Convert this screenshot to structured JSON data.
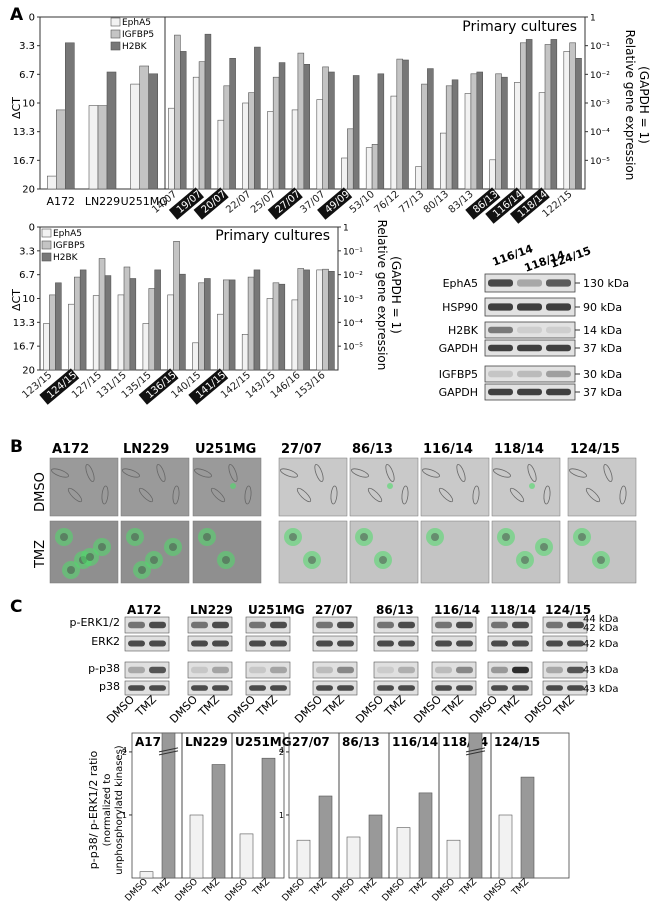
{
  "panels": {
    "A": "A",
    "B": "B",
    "C": "C"
  },
  "series_names": [
    "EphA5",
    "IGFBP5",
    "H2BK"
  ],
  "colors": {
    "epha5": "#f2f2f2",
    "igfbp5": "#c4c4c4",
    "h2bk": "#777777",
    "gfp": "#4fdc6a"
  },
  "axis_text": {
    "dct_label": "ΔCT",
    "right_label_line1": "Relative gene expression",
    "right_label_line2": "(GAPDH = 1)",
    "dct_ticks": [
      "0",
      "3.3",
      "6.7",
      "10",
      "13.3",
      "16.7",
      "20"
    ],
    "rel_ticks": [
      "1",
      "10⁻¹",
      "10⁻²",
      "10⁻³",
      "10⁻⁴",
      "10⁻⁵"
    ],
    "primary_cultures": "Primary cultures"
  },
  "chart_data": [
    {
      "type": "bar",
      "title": "",
      "categories": [
        "A172",
        "LN229",
        "U251MG"
      ],
      "highlighted": [],
      "ylabel": "ΔCT",
      "ylim": [
        20,
        0
      ],
      "series": [
        {
          "name": "EphA5",
          "values": [
            18.5,
            10.3,
            7.8
          ]
        },
        {
          "name": "IGFBP5",
          "values": [
            10.8,
            10.3,
            5.7
          ]
        },
        {
          "name": "H2BK",
          "values": [
            3.0,
            6.4,
            6.6
          ]
        }
      ]
    },
    {
      "type": "bar",
      "title": "Primary cultures",
      "categories": [
        "14/07",
        "19/07",
        "20/07",
        "22/07",
        "25/07",
        "27/07",
        "37/07",
        "49/09",
        "53/10",
        "76/12",
        "77/13",
        "80/13",
        "83/13",
        "86/13",
        "116/14",
        "118/14",
        "122/15"
      ],
      "highlighted": [
        "19/07",
        "20/07",
        "27/07",
        "49/09",
        "86/13",
        "116/14",
        "118/14"
      ],
      "ylabel": "ΔCT",
      "ylim": [
        20,
        0
      ],
      "series": [
        {
          "name": "EphA5",
          "values": [
            10.6,
            7.0,
            12.0,
            10.0,
            11.0,
            10.8,
            9.6,
            16.4,
            15.2,
            9.2,
            17.4,
            13.5,
            8.9,
            16.6,
            7.6,
            8.8,
            4.0
          ]
        },
        {
          "name": "IGFBP5",
          "values": [
            2.1,
            5.2,
            8.0,
            8.8,
            7.0,
            4.2,
            5.8,
            13.0,
            14.8,
            4.9,
            7.8,
            8.0,
            6.6,
            6.6,
            3.0,
            3.2,
            3.0
          ]
        },
        {
          "name": "H2BK",
          "values": [
            4.0,
            2.0,
            4.8,
            3.5,
            5.3,
            5.5,
            6.4,
            6.8,
            6.6,
            5.0,
            6.0,
            7.3,
            6.4,
            7.0,
            2.6,
            2.6,
            4.8
          ]
        }
      ]
    },
    {
      "type": "bar",
      "title": "Primary cultures",
      "categories": [
        "123/15",
        "124/15",
        "127/15",
        "131/15",
        "135/15",
        "136/15",
        "140/15",
        "141/15",
        "142/15",
        "143/15",
        "146/16",
        "153/16"
      ],
      "highlighted": [
        "124/15",
        "136/15",
        "141/15"
      ],
      "ylabel": "ΔCT",
      "ylim": [
        20,
        0
      ],
      "series": [
        {
          "name": "EphA5",
          "values": [
            13.5,
            10.8,
            9.6,
            9.5,
            13.5,
            9.5,
            16.2,
            12.2,
            15.0,
            10.0,
            10.2,
            6.0
          ]
        },
        {
          "name": "IGFBP5",
          "values": [
            9.5,
            7.0,
            4.4,
            5.6,
            8.6,
            2.0,
            7.8,
            7.4,
            7.0,
            7.8,
            5.8,
            5.9
          ]
        },
        {
          "name": "H2BK",
          "values": [
            7.8,
            6.0,
            6.8,
            7.2,
            6.0,
            6.6,
            7.2,
            7.4,
            6.0,
            8.0,
            6.0,
            6.2
          ]
        }
      ]
    },
    {
      "type": "bar",
      "title": "",
      "categories": [
        "A172",
        "LN229",
        "U251MG",
        "27/07",
        "86/13",
        "116/14",
        "118/14",
        "124/15"
      ],
      "ylabel": "p-p38/ p-ERK1/2 ratio (normalized to unphosphorylated kinases)",
      "series": [
        {
          "name": "DMSO",
          "values": [
            0.1,
            1.0,
            0.7,
            0.6,
            0.65,
            0.8,
            0.6,
            1.0
          ]
        },
        {
          "name": "TMZ",
          "values": [
            4.0,
            1.8,
            1.9,
            1.3,
            1.0,
            1.35,
            4.0,
            1.6
          ]
        }
      ],
      "broken_axis_values": [
        "2",
        "4"
      ],
      "tick_labels": [
        "1",
        "2",
        "4"
      ]
    }
  ],
  "western_A": {
    "lanes": [
      "116/14",
      "118/14",
      "124/15"
    ],
    "proteins": [
      "EphA5",
      "HSP90",
      "H2BK",
      "GAPDH",
      "IGFBP5",
      "GAPDH"
    ],
    "sizes": [
      "130 kDa",
      "90 kDa",
      "14 kDa",
      "37 kDa",
      "30 kDa",
      "37 kDa"
    ]
  },
  "microscopy_B": {
    "row_labels": [
      "DMSO",
      "TMZ"
    ],
    "columns": [
      "A172",
      "LN229",
      "U251MG",
      "27/07",
      "86/13",
      "116/14",
      "118/14",
      "124/15"
    ]
  },
  "western_C": {
    "groups": [
      "A172",
      "LN229",
      "U251MG",
      "27/07",
      "86/13",
      "116/14",
      "118/14",
      "124/15"
    ],
    "rows": [
      "p-ERK1/2",
      "ERK2",
      "p-p38",
      "p38"
    ],
    "sizes": [
      "44 kDa",
      "42 kDa",
      "42 kDa",
      "43 kDa",
      "43 kDa"
    ],
    "lane_labels": [
      "DMSO",
      "TMZ"
    ]
  }
}
